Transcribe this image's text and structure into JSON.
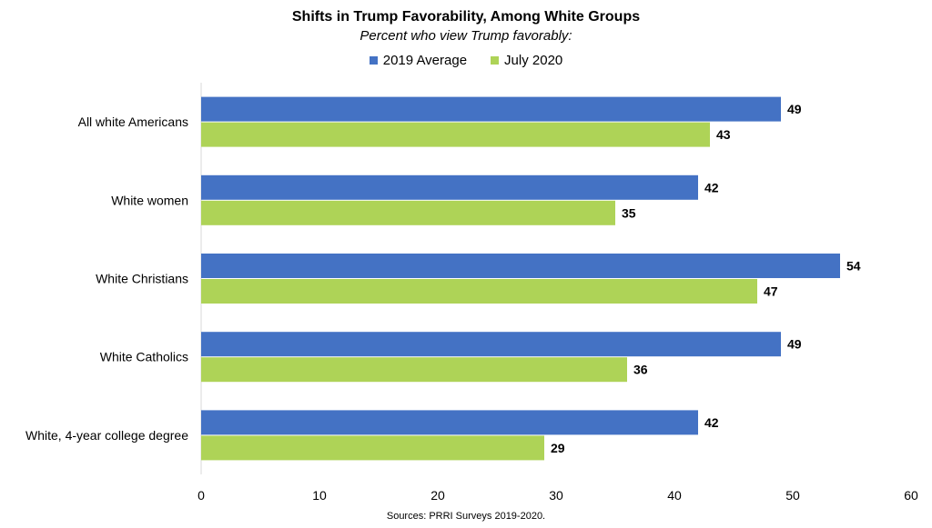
{
  "chart_data": {
    "type": "bar",
    "orientation": "horizontal",
    "title": "Shifts in Trump Favorability, Among White Groups",
    "subtitle": "Percent who view Trump favorably:",
    "categories": [
      "All white Americans",
      "White women",
      "White Christians",
      "White Catholics",
      "White, 4-year college degree"
    ],
    "series": [
      {
        "name": "2019 Average",
        "color": "#4472C4",
        "values": [
          49,
          42,
          54,
          49,
          42
        ]
      },
      {
        "name": "July 2020",
        "color": "#AED357",
        "values": [
          43,
          35,
          47,
          36,
          29
        ]
      }
    ],
    "xlim": [
      0,
      60
    ],
    "xticks": [
      0,
      10,
      20,
      30,
      40,
      50,
      60
    ],
    "legend_position": "top-center",
    "grid": false,
    "source": "Sources: PRRI Surveys 2019-2020."
  }
}
